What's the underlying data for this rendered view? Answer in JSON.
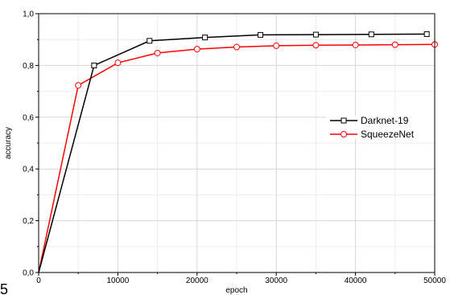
{
  "chart_data": {
    "type": "line",
    "xlabel": "epoch",
    "ylabel": "accuracy",
    "xlim": [
      0,
      50000
    ],
    "ylim": [
      0.0,
      1.0
    ],
    "x_ticks": [
      0,
      10000,
      20000,
      30000,
      40000,
      50000
    ],
    "x_tick_labels": [
      "0",
      "10000",
      "20000",
      "30000",
      "40000",
      "50000"
    ],
    "y_ticks": [
      0.0,
      0.2,
      0.4,
      0.6,
      0.8,
      1.0
    ],
    "y_tick_labels": [
      "0,0",
      "0,2",
      "0,4",
      "0,6",
      "0,8",
      "1,0"
    ],
    "grid": true,
    "legend_position": "right",
    "series": [
      {
        "name": "Darknet-19",
        "color": "#000000",
        "marker": "square",
        "x": [
          0,
          7000,
          14000,
          21000,
          28000,
          35000,
          42000,
          49000
        ],
        "y": [
          0.0,
          0.8,
          0.895,
          0.908,
          0.918,
          0.919,
          0.92,
          0.921
        ]
      },
      {
        "name": "SqueezeNet",
        "color": "#ff0000",
        "marker": "circle",
        "x": [
          0,
          5000,
          10000,
          15000,
          20000,
          25000,
          30000,
          35000,
          40000,
          45000,
          50000
        ],
        "y": [
          0.0,
          0.723,
          0.81,
          0.848,
          0.863,
          0.871,
          0.876,
          0.878,
          0.879,
          0.88,
          0.881
        ]
      }
    ]
  },
  "corner_glyph": "5"
}
